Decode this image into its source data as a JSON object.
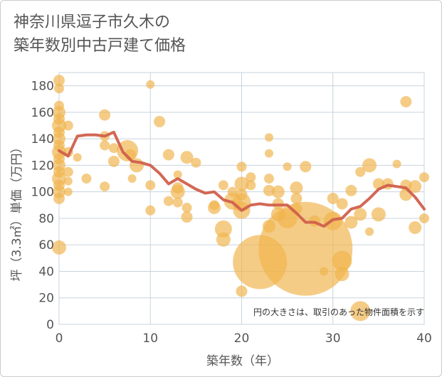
{
  "chart_data": {
    "type": "scatter",
    "title_lines": [
      "神奈川県逗子市久木の",
      "築年数別中古戸建て価格"
    ],
    "xlabel": "築年数（年）",
    "ylabel": "坪（3.3㎡）単価（万円）",
    "xlim": [
      0,
      40
    ],
    "ylim": [
      0,
      190
    ],
    "x_ticks": [
      0,
      10,
      20,
      30,
      40
    ],
    "y_ticks": [
      0,
      20,
      40,
      60,
      80,
      100,
      120,
      140,
      160,
      180
    ],
    "grid": true,
    "note": "円の大きさは、取引のあった物件面積を示す",
    "colors": {
      "bubble": "#f0b44c",
      "line": "#d0604c",
      "grid": "#c7d3de"
    },
    "bubbles": [
      {
        "x": 0,
        "y": 184,
        "s": 8
      },
      {
        "x": 0,
        "y": 178,
        "s": 7
      },
      {
        "x": 0,
        "y": 165,
        "s": 7
      },
      {
        "x": 0,
        "y": 160,
        "s": 9
      },
      {
        "x": 0,
        "y": 155,
        "s": 8
      },
      {
        "x": 0,
        "y": 150,
        "s": 10
      },
      {
        "x": 0,
        "y": 145,
        "s": 8
      },
      {
        "x": 0,
        "y": 140,
        "s": 9
      },
      {
        "x": 0,
        "y": 135,
        "s": 8
      },
      {
        "x": 0,
        "y": 130,
        "s": 10
      },
      {
        "x": 0,
        "y": 125,
        "s": 8
      },
      {
        "x": 0,
        "y": 120,
        "s": 9
      },
      {
        "x": 0,
        "y": 115,
        "s": 8
      },
      {
        "x": 0,
        "y": 110,
        "s": 10
      },
      {
        "x": 0,
        "y": 105,
        "s": 8
      },
      {
        "x": 0,
        "y": 100,
        "s": 9
      },
      {
        "x": 0,
        "y": 95,
        "s": 8
      },
      {
        "x": 0,
        "y": 58,
        "s": 10
      },
      {
        "x": 1,
        "y": 150,
        "s": 7
      },
      {
        "x": 1,
        "y": 130,
        "s": 7
      },
      {
        "x": 1,
        "y": 115,
        "s": 7
      },
      {
        "x": 1,
        "y": 108,
        "s": 6
      },
      {
        "x": 1,
        "y": 100,
        "s": 6
      },
      {
        "x": 2,
        "y": 126,
        "s": 6
      },
      {
        "x": 3,
        "y": 110,
        "s": 7
      },
      {
        "x": 5,
        "y": 158,
        "s": 8
      },
      {
        "x": 5,
        "y": 142,
        "s": 7
      },
      {
        "x": 5,
        "y": 135,
        "s": 7
      },
      {
        "x": 5,
        "y": 104,
        "s": 7
      },
      {
        "x": 6,
        "y": 133,
        "s": 7
      },
      {
        "x": 6,
        "y": 123,
        "s": 8
      },
      {
        "x": 7.5,
        "y": 131,
        "s": 15
      },
      {
        "x": 7.8,
        "y": 128,
        "s": 8
      },
      {
        "x": 8,
        "y": 110,
        "s": 6
      },
      {
        "x": 8.5,
        "y": 120,
        "s": 10
      },
      {
        "x": 10,
        "y": 181,
        "s": 6
      },
      {
        "x": 10,
        "y": 105,
        "s": 7
      },
      {
        "x": 10,
        "y": 86,
        "s": 7
      },
      {
        "x": 11,
        "y": 153,
        "s": 8
      },
      {
        "x": 12,
        "y": 128,
        "s": 8
      },
      {
        "x": 12,
        "y": 93,
        "s": 7
      },
      {
        "x": 13,
        "y": 113,
        "s": 6
      },
      {
        "x": 13,
        "y": 103,
        "s": 8
      },
      {
        "x": 13,
        "y": 100,
        "s": 10
      },
      {
        "x": 13,
        "y": 92,
        "s": 7
      },
      {
        "x": 14,
        "y": 126,
        "s": 9
      },
      {
        "x": 14,
        "y": 88,
        "s": 7
      },
      {
        "x": 14,
        "y": 81,
        "s": 8
      },
      {
        "x": 15,
        "y": 122,
        "s": 7
      },
      {
        "x": 17,
        "y": 90,
        "s": 7
      },
      {
        "x": 17,
        "y": 88,
        "s": 9
      },
      {
        "x": 18,
        "y": 105,
        "s": 7
      },
      {
        "x": 18,
        "y": 72,
        "s": 12
      },
      {
        "x": 18,
        "y": 64,
        "s": 10
      },
      {
        "x": 19,
        "y": 100,
        "s": 7
      },
      {
        "x": 19,
        "y": 93,
        "s": 12
      },
      {
        "x": 20,
        "y": 119,
        "s": 7
      },
      {
        "x": 20,
        "y": 106,
        "s": 10
      },
      {
        "x": 20,
        "y": 98,
        "s": 8
      },
      {
        "x": 20,
        "y": 92,
        "s": 13
      },
      {
        "x": 20,
        "y": 86,
        "s": 12
      },
      {
        "x": 20,
        "y": 25,
        "s": 8
      },
      {
        "x": 21,
        "y": 111,
        "s": 7
      },
      {
        "x": 21,
        "y": 105,
        "s": 7
      },
      {
        "x": 22,
        "y": 47,
        "s": 38
      },
      {
        "x": 23,
        "y": 141,
        "s": 6
      },
      {
        "x": 23,
        "y": 129,
        "s": 6
      },
      {
        "x": 23,
        "y": 110,
        "s": 7
      },
      {
        "x": 23,
        "y": 101,
        "s": 8
      },
      {
        "x": 23,
        "y": 74,
        "s": 9
      },
      {
        "x": 24,
        "y": 100,
        "s": 9
      },
      {
        "x": 24,
        "y": 91,
        "s": 8
      },
      {
        "x": 24,
        "y": 83,
        "s": 10
      },
      {
        "x": 25,
        "y": 119,
        "s": 6
      },
      {
        "x": 25,
        "y": 80,
        "s": 14
      },
      {
        "x": 26,
        "y": 103,
        "s": 9
      },
      {
        "x": 26,
        "y": 95,
        "s": 8
      },
      {
        "x": 26,
        "y": 87,
        "s": 8
      },
      {
        "x": 27,
        "y": 119,
        "s": 8
      },
      {
        "x": 27,
        "y": 57,
        "s": 66
      },
      {
        "x": 28,
        "y": 78,
        "s": 8
      },
      {
        "x": 29,
        "y": 40,
        "s": 6
      },
      {
        "x": 30,
        "y": 95,
        "s": 8
      },
      {
        "x": 30,
        "y": 78,
        "s": 13
      },
      {
        "x": 31,
        "y": 91,
        "s": 8
      },
      {
        "x": 31,
        "y": 48,
        "s": 14
      },
      {
        "x": 31,
        "y": 38,
        "s": 10
      },
      {
        "x": 32,
        "y": 101,
        "s": 8
      },
      {
        "x": 32,
        "y": 77,
        "s": 9
      },
      {
        "x": 33,
        "y": 115,
        "s": 7
      },
      {
        "x": 33,
        "y": 10,
        "s": 14
      },
      {
        "x": 33,
        "y": 83,
        "s": 9
      },
      {
        "x": 34,
        "y": 120,
        "s": 10
      },
      {
        "x": 34,
        "y": 70,
        "s": 6
      },
      {
        "x": 35,
        "y": 106,
        "s": 8
      },
      {
        "x": 35,
        "y": 83,
        "s": 10
      },
      {
        "x": 36,
        "y": 106,
        "s": 8
      },
      {
        "x": 37,
        "y": 121,
        "s": 6
      },
      {
        "x": 38,
        "y": 168,
        "s": 8
      },
      {
        "x": 38,
        "y": 105,
        "s": 8
      },
      {
        "x": 38,
        "y": 98,
        "s": 9
      },
      {
        "x": 39,
        "y": 104,
        "s": 9
      },
      {
        "x": 39,
        "y": 73,
        "s": 9
      },
      {
        "x": 40,
        "y": 111,
        "s": 7
      },
      {
        "x": 40,
        "y": 80,
        "s": 7
      }
    ],
    "trend": {
      "x": [
        0,
        1,
        2,
        3,
        4,
        5,
        6,
        7,
        8,
        9,
        10,
        11,
        12,
        13,
        14,
        15,
        16,
        17,
        18,
        19,
        20,
        21,
        22,
        23,
        24,
        25,
        26,
        27,
        28,
        29,
        30,
        31,
        32,
        33,
        34,
        35,
        36,
        37,
        38,
        39,
        40
      ],
      "y": [
        131,
        127,
        142,
        143,
        143,
        142,
        145,
        130,
        123,
        122,
        120,
        114,
        106,
        110,
        106,
        102,
        99,
        100,
        94,
        92,
        86,
        90,
        91,
        90,
        90,
        90,
        84,
        77,
        77,
        74,
        79,
        80,
        87,
        89,
        95,
        102,
        105,
        104,
        103,
        96,
        87
      ]
    }
  }
}
